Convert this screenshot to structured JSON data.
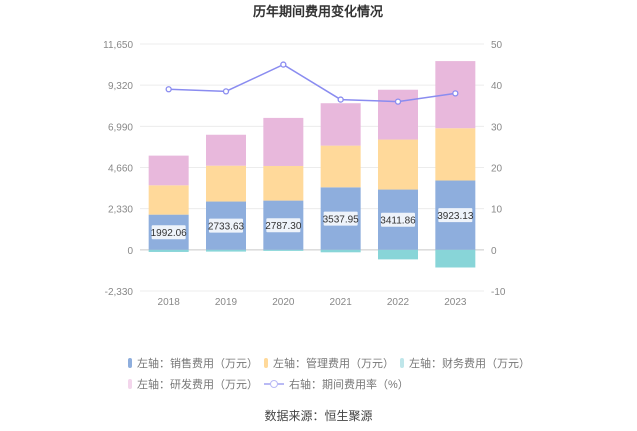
{
  "chart_data": {
    "type": "bar",
    "title": "历年期间费用变化情况",
    "categories": [
      "2018",
      "2019",
      "2020",
      "2021",
      "2022",
      "2023"
    ],
    "left_axis": {
      "ticks": [
        "11,650",
        "9,320",
        "6,990",
        "4,660",
        "2,330",
        "0",
        "-2,330"
      ],
      "ylim": [
        -2330,
        11650
      ]
    },
    "right_axis": {
      "ticks": [
        "50",
        "40",
        "30",
        "20",
        "10",
        "0",
        "-10"
      ],
      "ylim": [
        -10,
        50
      ]
    },
    "series": [
      {
        "name": "左轴：销售费用（万元）",
        "color": "#8eaedd",
        "values": [
          1992.06,
          2733.63,
          2787.3,
          3537.95,
          3411.86,
          3923.13
        ],
        "labels": [
          "1992.06",
          "2733.63",
          "2787.30",
          "3537.95",
          "3411.86",
          "3923.13"
        ]
      },
      {
        "name": "左轴：管理费用（万元）",
        "color": "#ffd99a",
        "values": [
          1660,
          2030,
          1960,
          2360,
          2830,
          2960
        ]
      },
      {
        "name": "左轴：财务费用（万元）",
        "color": "#88d5d8",
        "values": [
          -120,
          -100,
          -60,
          -140,
          -540,
          -1000
        ]
      },
      {
        "name": "左轴：研发费用（万元）",
        "color": "#e8b8dc",
        "values": [
          1680,
          1750,
          2720,
          2400,
          2820,
          3800
        ]
      },
      {
        "name": "右轴：期间费用率（%）",
        "type": "line",
        "color": "#8a8cf0",
        "axis": "right",
        "values": [
          39.0,
          38.5,
          45.0,
          36.5,
          36.0,
          38.0
        ]
      }
    ],
    "grid": true,
    "legend": "bottom"
  },
  "source": "数据来源：恒生聚源"
}
